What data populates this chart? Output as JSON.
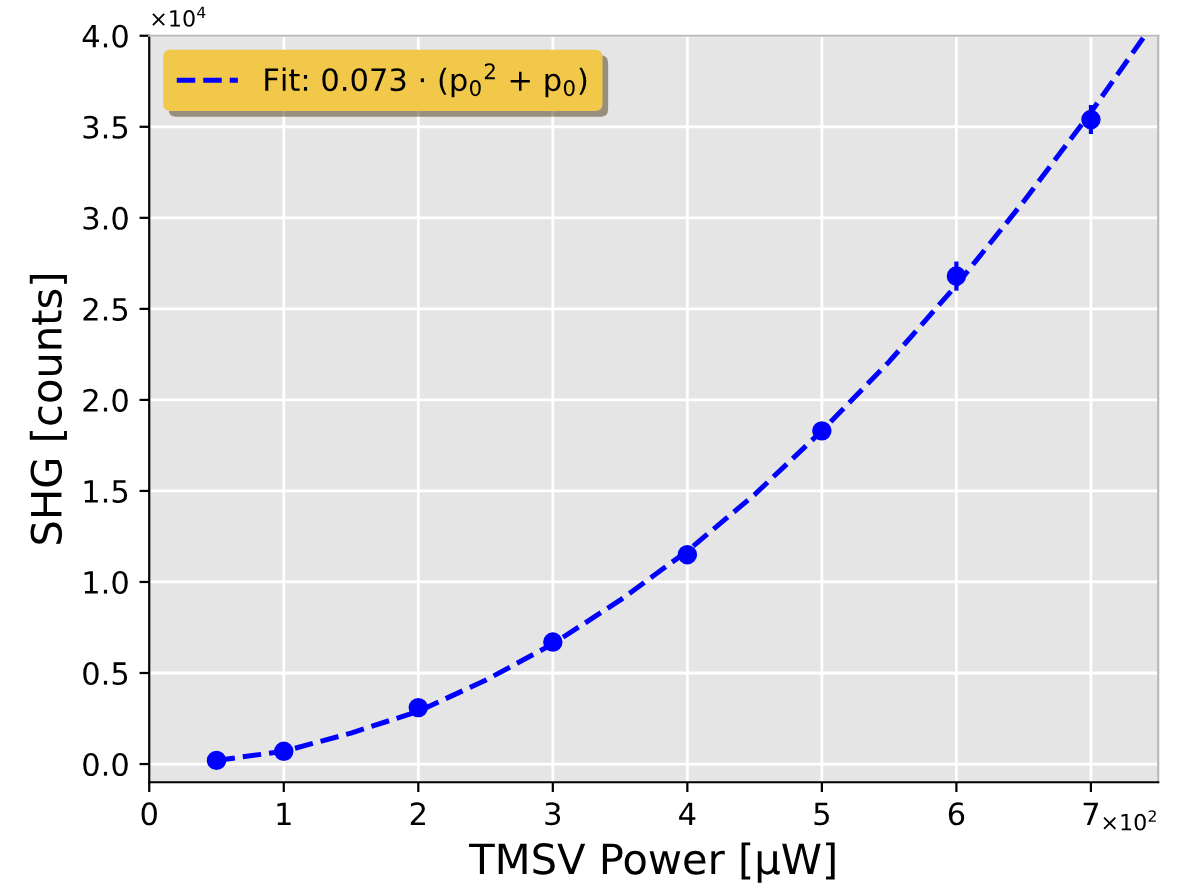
{
  "chart_data": {
    "type": "scatter",
    "xlabel": "TMSV Power [μW]",
    "ylabel": "SHG [counts]",
    "xlim": [
      0,
      7.5
    ],
    "xticks": [
      0,
      1,
      2,
      3,
      4,
      5,
      6,
      7
    ],
    "ylim": [
      -0.1,
      4.0
    ],
    "yticks": [
      {
        "value": 0,
        "label": "0.0"
      },
      0.5,
      {
        "value": 1,
        "label": "1.0"
      },
      1.5,
      {
        "value": 2,
        "label": "2.0"
      },
      2.5,
      {
        "value": 3,
        "label": "3.0"
      },
      3.5,
      {
        "value": 4,
        "label": "4.0"
      }
    ],
    "grid": true,
    "legend": "top left",
    "annotations": [
      "×10$^{4}$",
      "×10$^{2}$"
    ],
    "series": [
      {
        "color": "#0000ff",
        "marker": "circle",
        "x": [
          0.5,
          1,
          2,
          3,
          4,
          5,
          6,
          7
        ],
        "values": [
          0.02,
          0.07,
          0.31,
          0.67,
          1.15,
          1.83,
          2.68,
          3.54
        ],
        "errors": [
          null,
          null,
          null,
          null,
          null,
          null,
          0.08,
          0.08
        ]
      },
      {
        "type": "line",
        "name": "Fit: 0.073 · (p$_{0}$$^{2}$ + p$_{0}$)",
        "color": "#0000ff",
        "line_style": "dashed",
        "x": [
          0.5,
          1,
          1.5,
          2,
          2.5,
          3,
          3.5,
          4,
          4.5,
          5,
          5.5,
          6,
          6.5,
          7,
          7.4
        ],
        "values": [
          0.02,
          0.07,
          0.17,
          0.29,
          0.46,
          0.66,
          0.9,
          1.17,
          1.48,
          1.83,
          2.21,
          2.63,
          3.09,
          3.58,
          4.0
        ]
      }
    ]
  }
}
